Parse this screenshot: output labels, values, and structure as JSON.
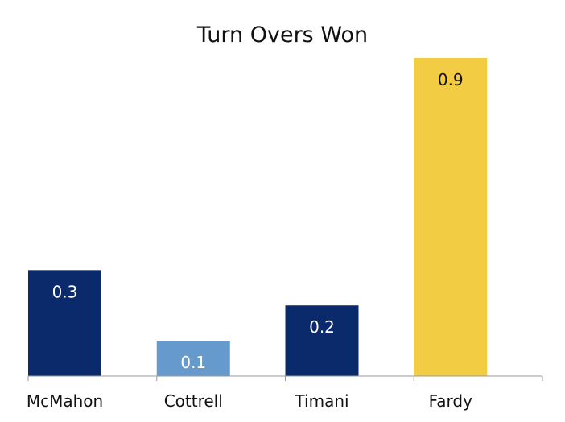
{
  "chart_data": {
    "type": "bar",
    "title": "Turn Overs Won",
    "xlabel": "",
    "ylabel": "",
    "categories": [
      "McMahon",
      "Cottrell",
      "Timani",
      "Fardy"
    ],
    "values": [
      0.3,
      0.1,
      0.2,
      0.9
    ],
    "data_labels": [
      "0.3",
      "0.1",
      "0.2",
      "0.9"
    ],
    "ylim": [
      0,
      0.9
    ],
    "grid": false,
    "legend": "none",
    "bar_colors": [
      "#0b2a6b",
      "#6699cc",
      "#0b2a6b",
      "#f2cc43"
    ],
    "label_colors": [
      "#ffffff",
      "#ffffff",
      "#ffffff",
      "#111111"
    ],
    "axis_color": "#9a9a9a"
  }
}
